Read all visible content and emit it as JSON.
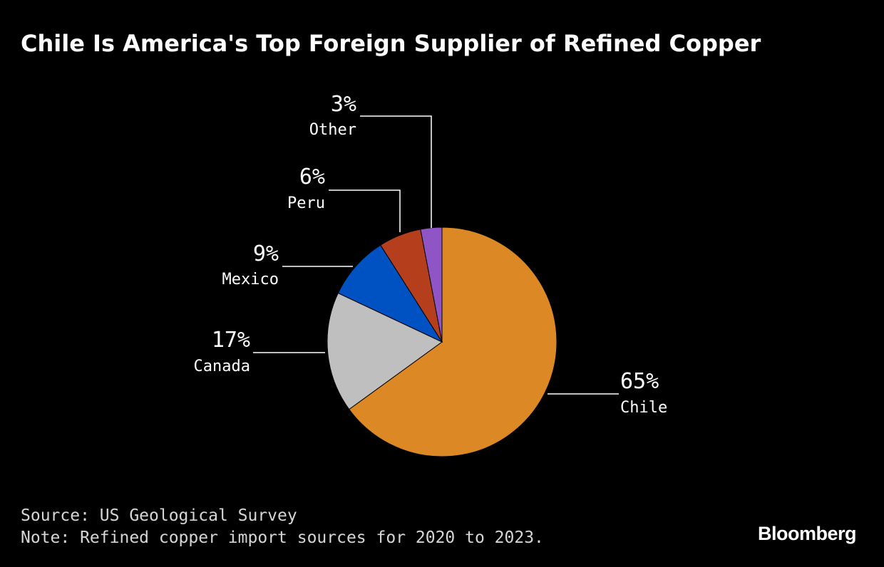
{
  "chart_data": {
    "type": "pie",
    "title": "Chile Is America's Top Foreign Supplier of Refined Copper",
    "categories": [
      "Chile",
      "Canada",
      "Mexico",
      "Peru",
      "Other"
    ],
    "values": [
      65,
      17,
      9,
      6,
      3
    ],
    "labels": [
      "65%",
      "17%",
      "9%",
      "6%",
      "3%"
    ],
    "colors": [
      "#db8825",
      "#bfbfbf",
      "#0051c2",
      "#b53f1c",
      "#8f55c4"
    ],
    "legend": "none",
    "start_angle": "12 o'clock",
    "direction": "clockwise"
  },
  "footer": {
    "source": "Source: US Geological Survey",
    "note": "Note: Refined copper import sources for 2020 to 2023."
  },
  "brand": "Bloomberg"
}
